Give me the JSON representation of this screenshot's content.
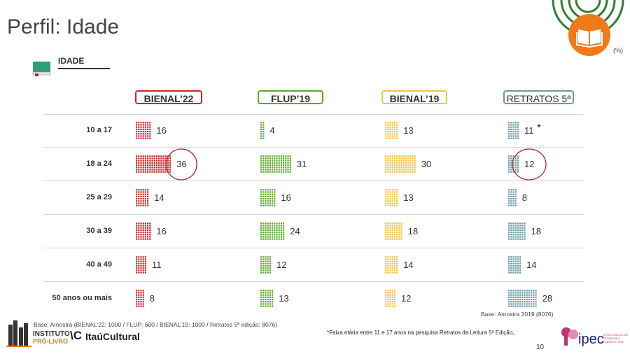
{
  "title": "Perfil: Idade",
  "section_label": "IDADE",
  "unit_label": "(%)",
  "chart_data": {
    "type": "bar",
    "categories": [
      "10 a 17",
      "18 a 24",
      "25 a 29",
      "30 a 39",
      "40 a 49",
      "50 anos ou mais"
    ],
    "series": [
      {
        "name": "BIENAL’22",
        "color": "#c62828",
        "values": [
          16,
          36,
          14,
          16,
          11,
          8
        ]
      },
      {
        "name": "FLUP’19",
        "color": "#5fa82d",
        "values": [
          4,
          31,
          16,
          24,
          12,
          13
        ]
      },
      {
        "name": "BIENAL’19",
        "color": "#f0c541",
        "values": [
          13,
          30,
          13,
          18,
          14,
          12
        ]
      },
      {
        "name": "RETRATOS 5ª",
        "color": "#6f9aa3",
        "values": [
          11,
          12,
          8,
          18,
          14,
          28
        ]
      }
    ],
    "highlighted": [
      "BIENAL’22 18 a 24",
      "RETRATOS 5ª 18 a 24"
    ],
    "annotation": "*"
  },
  "footer": {
    "base_right": "Base: Amostra  2019 (8076)",
    "base_left": "Base: Amostra (BIENAL’22: 1000 / FLUP: 600 / BIENAL’19: 1000 / Retratos 5ª edição: 8076)",
    "note": "*Faixa etária entre 11 e 17 anos na pesquisa Retratos da Leitura 5ª Edição,.",
    "page_number": "10"
  },
  "logos": {
    "instituto_line1": "INSTITUTO",
    "instituto_line2": "PRÓ-LIVRO",
    "vc": "\\C",
    "itau": "ItaúCultural",
    "ipec": "ipec",
    "ipec_tagline": "INTELIGÊNCIA EM PESQUISA E CONSULTORIA"
  }
}
